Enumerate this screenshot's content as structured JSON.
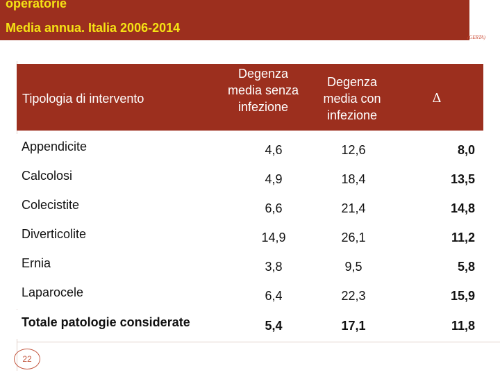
{
  "slide": {
    "title_line1": "operatorie",
    "title_line2": "Media annua. Italia 2006-2014",
    "logo_text": "(GERTA)",
    "page_number": "22"
  },
  "table": {
    "headers": {
      "type": "Tipologia di intervento",
      "without_infection": "Degenza media senza infezione",
      "with_infection": "Degenza media con infezione",
      "delta": "Δ"
    },
    "rows": [
      {
        "name": "Appendicite",
        "without": "4,6",
        "with": "12,6",
        "delta": "8,0"
      },
      {
        "name": "Calcolosi",
        "without": "4,9",
        "with": "18,4",
        "delta": "13,5"
      },
      {
        "name": "Colecistite",
        "without": "6,6",
        "with": "21,4",
        "delta": "14,8"
      },
      {
        "name": "Diverticolite",
        "without": "14,9",
        "with": "26,1",
        "delta": "11,2"
      },
      {
        "name": "Ernia",
        "without": "3,8",
        "with": "9,5",
        "delta": "5,8"
      },
      {
        "name": "Laparocele",
        "without": "6,4",
        "with": "22,3",
        "delta": "15,9"
      }
    ],
    "total": {
      "name": "Totale patologie considerate",
      "without": "5,4",
      "with": "17,1",
      "delta": "11,8"
    }
  },
  "colors": {
    "header_bg": "#9c2f1e",
    "title_text": "#f5e214",
    "accent": "#c45a43"
  }
}
